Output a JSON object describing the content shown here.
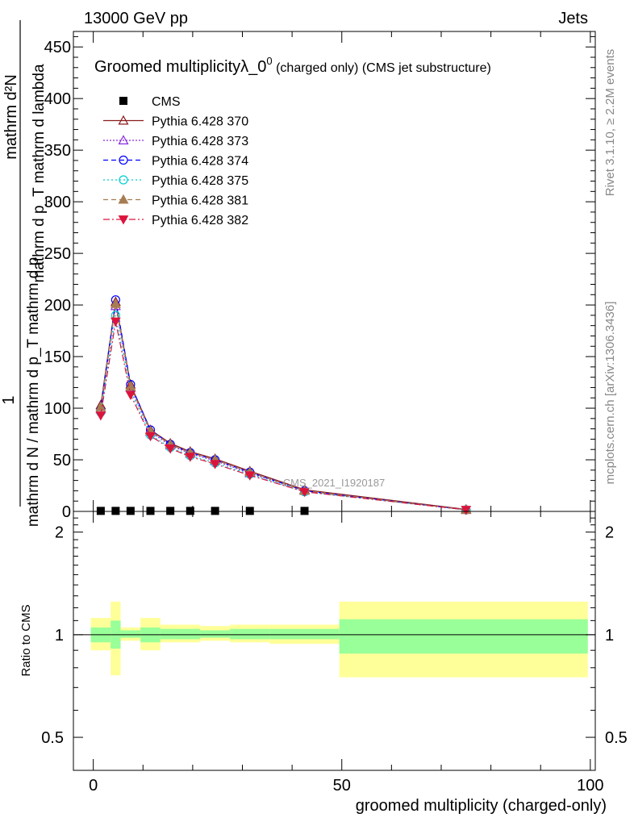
{
  "header": {
    "left": "13000 GeV pp",
    "right": "Jets"
  },
  "side_labels": {
    "rivet": "Rivet 3.1.10, ≥ 2.2M events",
    "mcplots": "mcplots.cern.ch [arXiv:1306.3436]"
  },
  "colors": {
    "cms": "#000000",
    "p370": "#8b1a1a",
    "p373": "#8a2be2",
    "p374": "#0000ff",
    "p375": "#00ced1",
    "p381": "#a67c52",
    "p382": "#dc143c",
    "band_green": "#99ff99",
    "band_yellow": "#ffff99"
  },
  "chart_data": [
    {
      "type": "line",
      "title_main": "Groomed multiplicityλ_0",
      "title_sup": "0",
      "title_tail": " (charged only) (CMS jet substructure)",
      "ylabel_top": "1",
      "ylabel_top_fraction_num": "mathrm d²N",
      "ylabel_top_fraction_den": "mathrm d p_T mathrm d lambda",
      "ylabel_bottom": "mathrm d N / mathrm d p_T mathrm d p",
      "watermark": "CMS_2021_I1920187",
      "xlim": [
        -4,
        101
      ],
      "ylim": [
        0,
        465
      ],
      "yticks": [
        0,
        50,
        100,
        150,
        200,
        250,
        300,
        350,
        400,
        450
      ],
      "x": [
        1.5,
        4.5,
        7.5,
        11.5,
        15.5,
        19.5,
        24.5,
        31.5,
        42.5,
        75
      ],
      "series": [
        {
          "name": "CMS",
          "marker": "square",
          "color": "#000000",
          "dash": "",
          "values": [
            0.5,
            0.5,
            0.5,
            0.5,
            0.5,
            0.5,
            0.5,
            0.5,
            0.5,
            null
          ]
        },
        {
          "name": "Pythia 6.428 370",
          "marker": "triangle-open",
          "color": "#8b1a1a",
          "dash": "",
          "values": [
            103,
            203,
            123,
            79,
            66,
            58,
            51,
            39,
            21,
            2
          ]
        },
        {
          "name": "Pythia 6.428 373",
          "marker": "triangle-open",
          "color": "#8a2be2",
          "dash": "2,2",
          "values": [
            99,
            199,
            120,
            77,
            64,
            56,
            49,
            37,
            20,
            1.5
          ]
        },
        {
          "name": "Pythia 6.428 374",
          "marker": "circle-open",
          "color": "#0000ff",
          "dash": "6,4",
          "values": [
            98,
            205,
            123,
            79,
            65,
            57,
            50,
            38,
            20,
            1.5
          ]
        },
        {
          "name": "Pythia 6.428 375",
          "marker": "circle-open",
          "color": "#00ced1",
          "dash": "2,3",
          "values": [
            96,
            190,
            117,
            74,
            62,
            54,
            47,
            36,
            19,
            1.5
          ]
        },
        {
          "name": "Pythia 6.428 381",
          "marker": "triangle-filled",
          "color": "#a67c52",
          "dash": "6,4",
          "values": [
            101,
            201,
            121,
            78,
            65,
            57,
            50,
            38,
            20,
            1.5
          ]
        },
        {
          "name": "Pythia 6.428 382",
          "marker": "triangle-down-filled",
          "color": "#dc143c",
          "dash": "8,3,2,3",
          "values": [
            93,
            184,
            113,
            73,
            61,
            53,
            46,
            35,
            19,
            1.5
          ]
        }
      ]
    },
    {
      "type": "area",
      "ylabel": "Ratio to CMS",
      "xlabel": "groomed multiplicity (charged-only)",
      "xlim": [
        -4,
        101
      ],
      "ylim": [
        0.4,
        2.3
      ],
      "log_y": true,
      "yticks": [
        0.5,
        1,
        2
      ],
      "xticks": [
        0,
        50,
        100
      ],
      "bands": [
        {
          "x0": -0.5,
          "x1": 3.5,
          "green": [
            0.95,
            1.05
          ],
          "yellow": [
            0.9,
            1.12
          ]
        },
        {
          "x0": 3.5,
          "x1": 5.5,
          "green": [
            0.91,
            1.1
          ],
          "yellow": [
            0.76,
            1.25
          ]
        },
        {
          "x0": 5.5,
          "x1": 9.5,
          "green": [
            0.98,
            1.03
          ],
          "yellow": [
            0.96,
            1.05
          ]
        },
        {
          "x0": 9.5,
          "x1": 13.5,
          "green": [
            0.95,
            1.05
          ],
          "yellow": [
            0.9,
            1.12
          ]
        },
        {
          "x0": 13.5,
          "x1": 21.5,
          "green": [
            0.97,
            1.04
          ],
          "yellow": [
            0.95,
            1.07
          ]
        },
        {
          "x0": 21.5,
          "x1": 27.5,
          "green": [
            0.98,
            1.03
          ],
          "yellow": [
            0.96,
            1.06
          ]
        },
        {
          "x0": 27.5,
          "x1": 35.5,
          "green": [
            0.97,
            1.04
          ],
          "yellow": [
            0.95,
            1.07
          ]
        },
        {
          "x0": 35.5,
          "x1": 49.5,
          "green": [
            0.97,
            1.04
          ],
          "yellow": [
            0.94,
            1.07
          ]
        },
        {
          "x0": 49.5,
          "x1": 99.5,
          "green": [
            0.88,
            1.11
          ],
          "yellow": [
            0.75,
            1.25
          ]
        }
      ]
    }
  ]
}
